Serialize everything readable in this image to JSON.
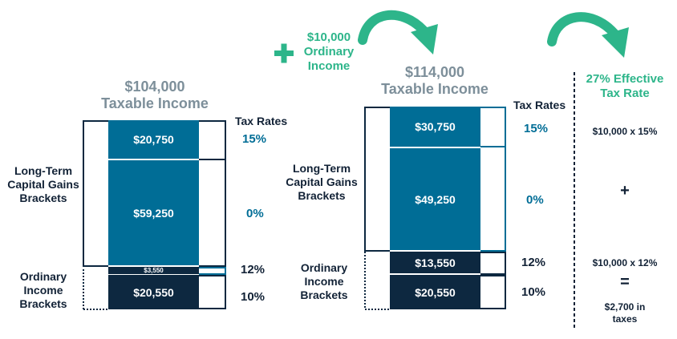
{
  "left": {
    "amount": "$104,000",
    "label": "Taxable Income",
    "tax_rates_heading": "Tax Rates",
    "ltcg_label": [
      "Long-Term",
      "Capital Gains",
      "Brackets"
    ],
    "ordinary_label": [
      "Ordinary",
      "Income",
      "Brackets"
    ],
    "segments": [
      "$20,750",
      "$59,250",
      "$3,550",
      "$20,550"
    ],
    "rates": [
      "15%",
      "0%",
      "12%",
      "10%"
    ]
  },
  "plus_note": {
    "amount": "$10,000",
    "line2": "Ordinary",
    "line3": "Income"
  },
  "right": {
    "amount": "$114,000",
    "label": "Taxable Income",
    "tax_rates_heading": "Tax Rates",
    "ltcg_label": [
      "Long-Term",
      "Capital Gains",
      "Brackets"
    ],
    "ordinary_label": [
      "Ordinary",
      "Income",
      "Brackets"
    ],
    "segments": [
      "$30,750",
      "$49,250",
      "$13,550",
      "$20,550"
    ],
    "rates": [
      "15%",
      "0%",
      "12%",
      "10%"
    ]
  },
  "effective": {
    "title": [
      "27% Effective",
      "Tax Rate"
    ],
    "calc1": "$10,000 x 15%",
    "plus": "+",
    "calc2": "$10,000 x 12%",
    "equals": "=",
    "result": [
      "$2,700 in",
      "taxes"
    ]
  },
  "colors": {
    "blue": "#006d96",
    "navy": "#0d2840",
    "green": "#2db58a",
    "grey": "#7d8f9a"
  }
}
